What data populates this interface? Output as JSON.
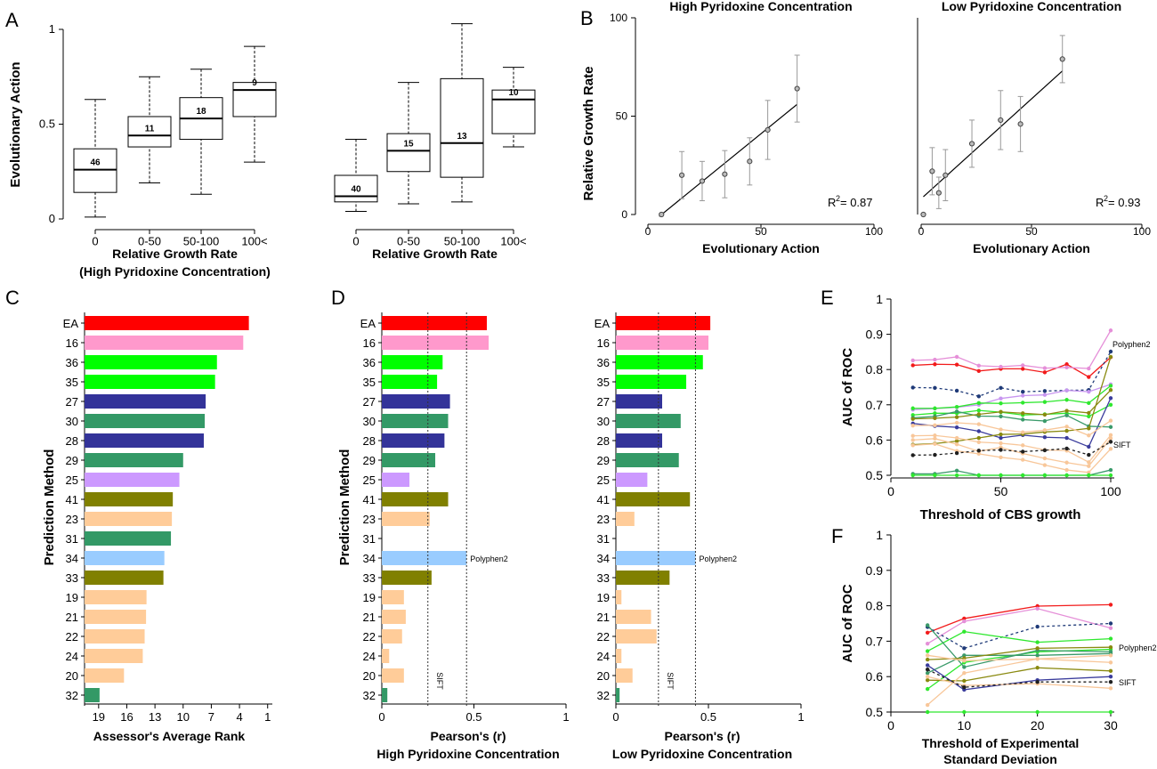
{
  "chart_data": [
    {
      "panel": "A",
      "type": "box",
      "ylabel": "Evolutionary Action",
      "xlabel": [
        "Relative Growth Rate",
        "(High Pyridoxine Concentration)"
      ],
      "ylim": [
        0,
        1
      ],
      "yticks": [
        "0",
        "0.5",
        "1"
      ],
      "categories": [
        "0",
        "0-50",
        "50-100",
        "100<"
      ],
      "boxes": [
        {
          "min": 0.01,
          "q1": 0.14,
          "median": 0.26,
          "q3": 0.37,
          "max": 0.63,
          "n": "46"
        },
        {
          "min": 0.19,
          "q1": 0.38,
          "median": 0.44,
          "q3": 0.54,
          "max": 0.75,
          "n": "11"
        },
        {
          "min": 0.13,
          "q1": 0.42,
          "median": 0.53,
          "q3": 0.64,
          "max": 0.79,
          "n": "18"
        },
        {
          "min": 0.3,
          "q1": 0.54,
          "median": 0.68,
          "q3": 0.72,
          "max": 0.91,
          "n": "9"
        }
      ]
    },
    {
      "panel": "A",
      "type": "box",
      "xlabel": [
        "Relative Growth Rate"
      ],
      "ylim": [
        0,
        1
      ],
      "categories": [
        "0",
        "0-50",
        "50-100",
        "100<"
      ],
      "boxes": [
        {
          "min": 0.04,
          "q1": 0.09,
          "median": 0.12,
          "q3": 0.23,
          "max": 0.42,
          "n": "40"
        },
        {
          "min": 0.08,
          "q1": 0.25,
          "median": 0.36,
          "q3": 0.45,
          "max": 0.72,
          "n": "15"
        },
        {
          "min": 0.09,
          "q1": 0.22,
          "median": 0.4,
          "q3": 0.74,
          "max": 1.03,
          "n": "13"
        },
        {
          "min": 0.38,
          "q1": 0.45,
          "median": 0.63,
          "q3": 0.68,
          "max": 0.8,
          "n": "10"
        }
      ]
    },
    {
      "panel": "B",
      "type": "scatter",
      "title": "High Pyridoxine Concentration",
      "ylabel": "Relative Growth Rate",
      "xlabel": "Evolutionary Action",
      "xlim": [
        0,
        100
      ],
      "ylim": [
        0,
        100
      ],
      "xticks": [
        "0",
        "50",
        "100"
      ],
      "yticks": [
        "0",
        "50",
        "100"
      ],
      "r2_label": "R",
      "r2_exp": "2",
      "r2_value": " = 0.87",
      "points": [
        {
          "x": 6,
          "y": 0,
          "err": 0
        },
        {
          "x": 15,
          "y": 20,
          "err": 12
        },
        {
          "x": 24,
          "y": 17,
          "err": 10
        },
        {
          "x": 34,
          "y": 20.5,
          "err": 12
        },
        {
          "x": 45,
          "y": 27,
          "err": 12
        },
        {
          "x": 53,
          "y": 43,
          "err": 15
        },
        {
          "x": 66,
          "y": 64,
          "err": 17
        }
      ],
      "fit": {
        "x": [
          5,
          66
        ],
        "y": [
          -1,
          56
        ]
      }
    },
    {
      "panel": "B",
      "type": "scatter",
      "title": "Low Pyridoxine Concentration",
      "xlabel": "Evolutionary Action",
      "xlim": [
        0,
        100
      ],
      "ylim": [
        0,
        100
      ],
      "xticks": [
        "0",
        "50",
        "100"
      ],
      "r2_label": "R",
      "r2_exp": "2",
      "r2_value": " = 0.93",
      "points": [
        {
          "x": 1,
          "y": 0,
          "err": 0
        },
        {
          "x": 5,
          "y": 22,
          "err": 12
        },
        {
          "x": 8,
          "y": 11,
          "err": 8
        },
        {
          "x": 11,
          "y": 20,
          "err": 13
        },
        {
          "x": 23,
          "y": 36,
          "err": 12
        },
        {
          "x": 36,
          "y": 48,
          "err": 15
        },
        {
          "x": 45,
          "y": 46,
          "err": 14
        },
        {
          "x": 64,
          "y": 79,
          "err": 12
        }
      ],
      "fit": {
        "x": [
          1,
          64
        ],
        "y": [
          9,
          73
        ]
      }
    },
    {
      "panel": "C",
      "type": "bar",
      "orientation": "horizontal",
      "ylabel": "Prediction Method",
      "xlabel": "Assessor's Average Rank",
      "xlim": [
        20.5,
        0.5
      ],
      "xticks": [
        "19",
        "16",
        "13",
        "10",
        "7",
        "4",
        "1"
      ],
      "categories": [
        "EA",
        "16",
        "36",
        "35",
        "27",
        "30",
        "28",
        "29",
        "25",
        "41",
        "23",
        "31",
        "34",
        "33",
        "19",
        "21",
        "22",
        "24",
        "20",
        "32"
      ],
      "values": [
        3.0,
        3.6,
        6.4,
        6.6,
        7.6,
        7.7,
        7.8,
        10.0,
        10.4,
        11.1,
        11.2,
        11.3,
        12.0,
        12.1,
        13.9,
        13.95,
        14.1,
        14.3,
        16.3,
        18.9
      ]
    },
    {
      "panel": "D",
      "type": "bar",
      "orientation": "horizontal",
      "ylabel": "Prediction Method",
      "xlabel": [
        "Pearson's (r)",
        "High Pyridoxine Concentration"
      ],
      "xlim": [
        0,
        1
      ],
      "xticks": [
        "0",
        "0.5",
        "1"
      ],
      "categories": [
        "EA",
        "16",
        "36",
        "35",
        "27",
        "30",
        "28",
        "29",
        "25",
        "41",
        "23",
        "31",
        "34",
        "33",
        "19",
        "21",
        "22",
        "24",
        "20",
        "32"
      ],
      "values": [
        0.57,
        0.58,
        0.33,
        0.3,
        0.37,
        0.36,
        0.34,
        0.29,
        0.15,
        0.36,
        0.26,
        0,
        0.46,
        0.27,
        0.12,
        0.13,
        0.11,
        0.04,
        0.12,
        0.03
      ],
      "ref_lines": [
        {
          "x": 0.25,
          "label": "SIFT"
        },
        {
          "x": 0.46,
          "label": ""
        }
      ],
      "annotation": "Polyphen2"
    },
    {
      "panel": "D",
      "type": "bar",
      "orientation": "horizontal",
      "xlabel": [
        "Pearson's (r)",
        "Low Pyridoxine Concentration"
      ],
      "xlim": [
        0,
        1
      ],
      "xticks": [
        "0",
        "0.5",
        "1"
      ],
      "categories": [
        "EA",
        "16",
        "36",
        "35",
        "27",
        "30",
        "28",
        "29",
        "25",
        "41",
        "23",
        "31",
        "34",
        "33",
        "19",
        "21",
        "22",
        "24",
        "20",
        "32"
      ],
      "values": [
        0.51,
        0.5,
        0.47,
        0.38,
        0.25,
        0.35,
        0.25,
        0.34,
        0.17,
        0.4,
        0.1,
        0,
        0.43,
        0.29,
        0.03,
        0.19,
        0.22,
        0.03,
        0.09,
        0.02
      ],
      "ref_lines": [
        {
          "x": 0.23,
          "label": "SIFT"
        },
        {
          "x": 0.43,
          "label": ""
        }
      ],
      "annotation": "Polyphen2"
    },
    {
      "panel": "E",
      "type": "line",
      "ylabel": "AUC of ROC",
      "xlabel": "Threshold of CBS growth",
      "xlim": [
        0,
        100
      ],
      "ylim": [
        0.5,
        1
      ],
      "xticks": [
        "0",
        "50",
        "100"
      ],
      "yticks": [
        "0.5",
        "0.6",
        "0.7",
        "0.8",
        "0.9",
        "1"
      ],
      "x": [
        10,
        20,
        30,
        40,
        50,
        60,
        70,
        80,
        90,
        100
      ],
      "labels": [
        "Polyphen2",
        "SIFT"
      ],
      "series": [
        {
          "color": "#f21b1b",
          "dash": false,
          "values": [
            0.812,
            0.815,
            0.814,
            0.796,
            0.802,
            0.802,
            0.792,
            0.815,
            0.779,
            0.835
          ]
        },
        {
          "color": "#e58fd8",
          "dash": false,
          "values": [
            0.826,
            0.828,
            0.836,
            0.811,
            0.808,
            0.812,
            0.804,
            0.806,
            0.803,
            0.911
          ]
        },
        {
          "color": "#1f3a78",
          "dash": true,
          "values": [
            0.749,
            0.748,
            0.74,
            0.724,
            0.748,
            0.737,
            0.739,
            0.741,
            0.742,
            0.851
          ]
        },
        {
          "color": "#c896f0",
          "dash": false,
          "values": [
            0.686,
            0.689,
            0.693,
            0.7,
            0.718,
            0.726,
            0.728,
            0.741,
            0.737,
            0.758
          ]
        },
        {
          "color": "#2ee82e",
          "dash": false,
          "values": [
            0.69,
            0.69,
            0.694,
            0.705,
            0.704,
            0.706,
            0.708,
            0.714,
            0.705,
            0.754
          ]
        },
        {
          "color": "#2ee82e",
          "dash": false,
          "values": [
            0.671,
            0.676,
            0.676,
            0.684,
            0.679,
            0.671,
            0.673,
            0.676,
            0.667,
            0.7
          ]
        },
        {
          "color": "#3a3c9c",
          "dash": false,
          "values": [
            0.647,
            0.64,
            0.636,
            0.625,
            0.606,
            0.614,
            0.608,
            0.606,
            0.581,
            0.719
          ]
        },
        {
          "color": "#3a9a6a",
          "dash": false,
          "values": [
            0.663,
            0.667,
            0.681,
            0.668,
            0.667,
            0.658,
            0.654,
            0.67,
            0.639,
            0.637
          ]
        },
        {
          "color": "#8a8a10",
          "dash": false,
          "values": [
            0.66,
            0.662,
            0.665,
            0.673,
            0.68,
            0.676,
            0.672,
            0.683,
            0.677,
            0.742
          ]
        },
        {
          "color": "#8a8a10",
          "dash": false,
          "values": [
            0.587,
            0.59,
            0.597,
            0.606,
            0.616,
            0.617,
            0.623,
            0.626,
            0.633,
            0.836
          ]
        },
        {
          "color": "#f8c79a",
          "dash": false,
          "values": [
            0.641,
            0.642,
            0.649,
            0.645,
            0.63,
            0.622,
            0.628,
            0.638,
            0.613,
            0.655
          ]
        },
        {
          "color": "#f8c79a",
          "dash": false,
          "values": [
            0.612,
            0.613,
            0.606,
            0.594,
            0.591,
            0.585,
            0.572,
            0.57,
            0.537,
            0.614
          ]
        },
        {
          "color": "#f8c79a",
          "dash": false,
          "values": [
            0.6,
            0.604,
            0.588,
            0.568,
            0.579,
            0.562,
            0.548,
            0.536,
            0.526,
            0.605
          ]
        },
        {
          "color": "#f8c79a",
          "dash": false,
          "values": [
            0.585,
            0.589,
            0.569,
            0.561,
            0.551,
            0.544,
            0.529,
            0.515,
            0.508,
            0.575
          ]
        },
        {
          "color": "#1f1f1f",
          "dash": true,
          "values": [
            0.557,
            0.558,
            0.563,
            0.57,
            0.572,
            0.567,
            0.571,
            0.576,
            0.558,
            0.595
          ]
        },
        {
          "color": "#3a9a6a",
          "dash": false,
          "values": [
            0.504,
            0.504,
            0.513,
            0.5,
            0.5,
            0.5,
            0.5,
            0.5,
            0.5,
            0.515
          ]
        },
        {
          "color": "#2ee82e",
          "dash": false,
          "values": [
            0.5,
            0.5,
            0.5,
            0.5,
            0.5,
            0.5,
            0.5,
            0.5,
            0.5,
            0.5
          ]
        }
      ]
    },
    {
      "panel": "F",
      "type": "line",
      "ylabel": "AUC of ROC",
      "xlabel": [
        "Threshold of Experimental",
        "Standard Deviation"
      ],
      "xlim": [
        0,
        30
      ],
      "ylim": [
        0.5,
        1
      ],
      "xticks": [
        "0",
        "10",
        "20",
        "30"
      ],
      "yticks": [
        "0.5",
        "0.6",
        "0.7",
        "0.8",
        "0.9",
        "1"
      ],
      "x": [
        5,
        10,
        20,
        30
      ],
      "labels": [
        "Polyphen2",
        "SIFT"
      ],
      "series": [
        {
          "color": "#f21b1b",
          "dash": false,
          "values": [
            0.724,
            0.764,
            0.799,
            0.803
          ]
        },
        {
          "color": "#e58fd8",
          "dash": false,
          "values": [
            0.693,
            0.756,
            0.792,
            0.737
          ]
        },
        {
          "color": "#1f3a78",
          "dash": true,
          "values": [
            0.74,
            0.68,
            0.741,
            0.75
          ]
        },
        {
          "color": "#2ee82e",
          "dash": false,
          "values": [
            0.672,
            0.727,
            0.697,
            0.707
          ]
        },
        {
          "color": "#2ee82e",
          "dash": false,
          "values": [
            0.565,
            0.64,
            0.67,
            0.677
          ]
        },
        {
          "color": "#3a9a6a",
          "dash": false,
          "values": [
            0.745,
            0.627,
            0.674,
            0.67
          ]
        },
        {
          "color": "#3a9a6a",
          "dash": false,
          "values": [
            0.61,
            0.66,
            0.66,
            0.665
          ]
        },
        {
          "color": "#8a8a10",
          "dash": false,
          "values": [
            0.648,
            0.652,
            0.68,
            0.683
          ]
        },
        {
          "color": "#8a8a10",
          "dash": false,
          "values": [
            0.59,
            0.588,
            0.625,
            0.616
          ]
        },
        {
          "color": "#3a3c9c",
          "dash": false,
          "values": [
            0.632,
            0.563,
            0.59,
            0.6
          ]
        },
        {
          "color": "#f8c79a",
          "dash": false,
          "values": [
            0.66,
            0.645,
            0.65,
            0.64
          ]
        },
        {
          "color": "#f8c79a",
          "dash": false,
          "values": [
            0.52,
            0.61,
            0.65,
            0.66
          ]
        },
        {
          "color": "#f8c79a",
          "dash": false,
          "values": [
            0.6,
            0.575,
            0.58,
            0.567
          ]
        },
        {
          "color": "#1f1f1f",
          "dash": true,
          "values": [
            0.62,
            0.57,
            0.585,
            0.585
          ]
        },
        {
          "color": "#2ee82e",
          "dash": false,
          "values": [
            0.5,
            0.5,
            0.5,
            0.5
          ]
        }
      ]
    }
  ],
  "panel_labels": [
    "A",
    "B",
    "C",
    "D",
    "E",
    "F"
  ],
  "bar_colors": [
    "#ff0000",
    "#ff99cc",
    "#00ff00",
    "#00ff00",
    "#333399",
    "#339966",
    "#333399",
    "#339966",
    "#cc99ff",
    "#808000",
    "#ffcc99",
    "#339966",
    "#99ccff",
    "#808000",
    "#ffcc99",
    "#ffcc99",
    "#ffcc99",
    "#ffcc99",
    "#ffcc99",
    "#339966"
  ]
}
